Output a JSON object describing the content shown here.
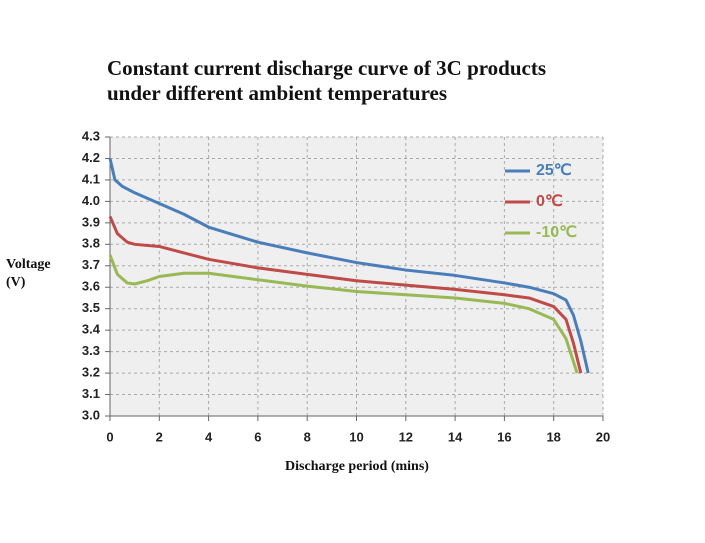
{
  "chart_data": {
    "type": "line",
    "title": [
      "Constant current discharge curve of 3C products",
      "under different ambient temperatures"
    ],
    "x_label": "Discharge period (mins)",
    "y_label": [
      "Voltage",
      "(V)"
    ],
    "xlim": [
      0,
      20
    ],
    "xticks": [
      0,
      2,
      4,
      6,
      8,
      10,
      12,
      14,
      16,
      18,
      20
    ],
    "ylim": [
      3.0,
      4.3
    ],
    "yticks": [
      {
        "value": 3,
        "label": "3.0"
      },
      3.1,
      3.2,
      3.3,
      3.4,
      3.5,
      3.6,
      3.7,
      3.8,
      3.9,
      {
        "value": 4,
        "label": "4.0"
      },
      4.1,
      4.2,
      4.3
    ],
    "grid": true,
    "legend": "upper right",
    "series": [
      {
        "name": "25℃",
        "color": "#4a7ebb",
        "x": [
          0,
          0.2,
          0.5,
          1,
          2,
          3,
          4,
          6,
          8,
          10,
          12,
          14,
          16,
          17,
          18,
          18.5,
          18.8,
          19.1,
          19.4
        ],
        "values": [
          4.2,
          4.1,
          4.07,
          4.04,
          3.99,
          3.94,
          3.88,
          3.81,
          3.76,
          3.715,
          3.68,
          3.655,
          3.62,
          3.6,
          3.57,
          3.54,
          3.47,
          3.35,
          3.2
        ]
      },
      {
        "name": "0℃",
        "color": "#be4b48",
        "x": [
          0,
          0.3,
          0.7,
          1,
          2,
          3,
          4,
          6,
          8,
          10,
          12,
          14,
          16,
          17,
          18,
          18.5,
          18.8,
          19.1
        ],
        "values": [
          3.93,
          3.85,
          3.81,
          3.8,
          3.79,
          3.76,
          3.73,
          3.69,
          3.66,
          3.63,
          3.61,
          3.59,
          3.565,
          3.55,
          3.51,
          3.45,
          3.34,
          3.2
        ]
      },
      {
        "name": "-10℃",
        "color": "#98b954",
        "x": [
          0,
          0.3,
          0.7,
          1,
          1.5,
          2,
          3,
          4,
          6,
          8,
          10,
          12,
          14,
          16,
          17,
          18,
          18.5,
          18.95
        ],
        "values": [
          3.75,
          3.66,
          3.62,
          3.615,
          3.63,
          3.65,
          3.665,
          3.665,
          3.635,
          3.605,
          3.58,
          3.565,
          3.55,
          3.525,
          3.5,
          3.45,
          3.36,
          3.2
        ]
      }
    ]
  }
}
